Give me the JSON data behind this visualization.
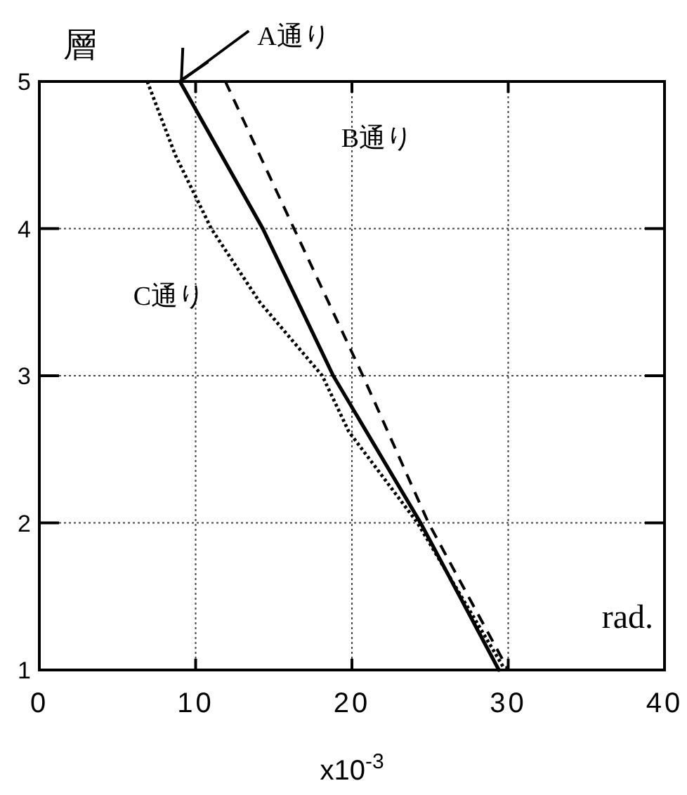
{
  "chart_data": {
    "type": "line",
    "ylabel": "層",
    "xlabel": "x10$^{-3}$",
    "annotations": [
      "rad."
    ],
    "xlim": [
      0,
      40
    ],
    "ylim": [
      1,
      5
    ],
    "xticks": [
      0,
      10,
      20,
      30,
      40
    ],
    "yticks": [
      1,
      2,
      3,
      4,
      5
    ],
    "grid": true,
    "series": [
      {
        "name": "A通り",
        "color": "#000000",
        "line_style": "solid",
        "x": [
          9.0,
          14.3,
          18.8,
          24.4,
          29.4
        ],
        "values": [
          5,
          4,
          3,
          2,
          1
        ]
      },
      {
        "name": "B通り",
        "color": "#000000",
        "line_style": "dashed",
        "x": [
          11.9,
          16.3,
          20.7,
          24.9,
          30.0
        ],
        "values": [
          5,
          4,
          3,
          2,
          1
        ]
      },
      {
        "name": "C通り",
        "color": "#000000",
        "line_style": "dotted",
        "x": [
          6.9,
          8.7,
          11.0,
          14.1,
          18.1,
          19.8,
          24.2,
          29.8
        ],
        "values": [
          5,
          4.5,
          4,
          3.5,
          3,
          2.62,
          2,
          1
        ]
      }
    ]
  }
}
